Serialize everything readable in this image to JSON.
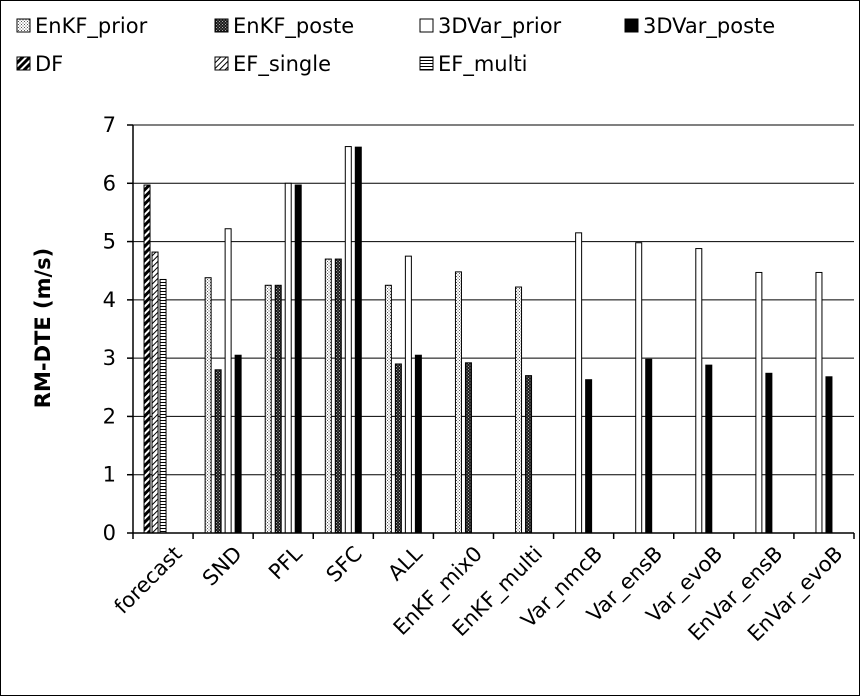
{
  "chart_data": {
    "type": "bar",
    "ylabel": "RM-DTE (m/s)",
    "xlabel": "",
    "ylim": [
      0,
      7
    ],
    "yticks": [
      "0",
      "1",
      "2",
      "3",
      "4",
      "5",
      "6",
      "7"
    ],
    "grid": "horizontal",
    "legend_position": "top",
    "categories": [
      "forecast",
      "SND",
      "PFL",
      "SFC",
      "ALL",
      "EnKF_mix0",
      "EnKF_multi",
      "Var_nmcB",
      "Var_ensB",
      "Var_evoB",
      "EnVar_ensB",
      "EnVar_evoB"
    ],
    "series": [
      {
        "name": "EnKF_prior",
        "pattern": "dots",
        "values": [
          null,
          4.38,
          4.25,
          4.7,
          4.25,
          4.48,
          4.22,
          null,
          null,
          null,
          null,
          null
        ]
      },
      {
        "name": "EnKF_poste",
        "pattern": "dark-dots",
        "values": [
          null,
          2.8,
          4.25,
          4.7,
          2.9,
          2.92,
          2.7,
          null,
          null,
          null,
          null,
          null
        ]
      },
      {
        "name": "3DVar_prior",
        "pattern": "white",
        "values": [
          null,
          5.22,
          6.0,
          6.63,
          4.75,
          null,
          null,
          5.15,
          4.98,
          4.88,
          4.47,
          4.47
        ]
      },
      {
        "name": "3DVar_poste",
        "pattern": "black",
        "values": [
          null,
          3.05,
          5.97,
          6.62,
          3.05,
          null,
          null,
          2.63,
          2.98,
          2.88,
          2.74,
          2.68
        ]
      },
      {
        "name": "DF",
        "pattern": "diag-heavy",
        "values": [
          5.97,
          null,
          null,
          null,
          null,
          null,
          null,
          null,
          null,
          null,
          null,
          null
        ]
      },
      {
        "name": "EF_single",
        "pattern": "diag-light",
        "values": [
          4.82,
          null,
          null,
          null,
          null,
          null,
          null,
          null,
          null,
          null,
          null,
          null
        ]
      },
      {
        "name": "EF_multi",
        "pattern": "hstripes",
        "values": [
          4.35,
          null,
          null,
          null,
          null,
          null,
          null,
          null,
          null,
          null,
          null,
          null
        ]
      }
    ]
  }
}
